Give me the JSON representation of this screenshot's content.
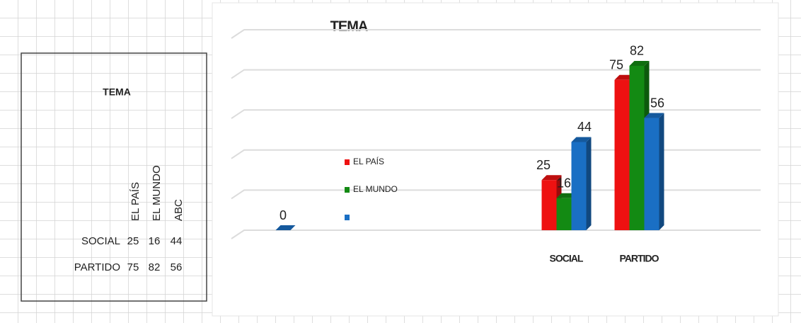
{
  "table": {
    "title": "TEMA",
    "columns": [
      "EL PAÍS",
      "EL MUNDO",
      "ABC"
    ],
    "rows": [
      [
        "SOCIAL",
        25,
        16,
        44
      ],
      [
        "PARTIDO",
        75,
        82,
        56
      ]
    ]
  },
  "chart_data": {
    "type": "bar",
    "title": "TEMA",
    "categories": [
      null,
      "SOCIAL",
      "PARTIDO"
    ],
    "series": [
      {
        "name": "EL PAÍS",
        "color": "#ee1111",
        "values": [
          null,
          25,
          75
        ]
      },
      {
        "name": "EL MUNDO",
        "color": "#138a13",
        "values": [
          null,
          16,
          82
        ]
      },
      {
        "name": null,
        "color": "#1a6fc4",
        "values": [
          0,
          44,
          56
        ]
      }
    ],
    "ylim": [
      0,
      100
    ],
    "yticks": [
      0,
      20,
      40,
      60,
      80,
      100
    ],
    "grid": true,
    "data_labels": true
  }
}
